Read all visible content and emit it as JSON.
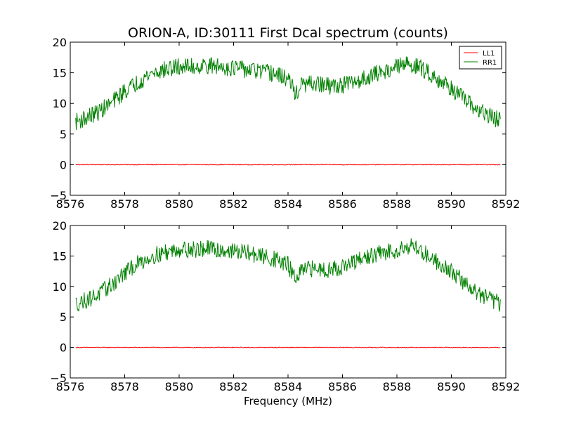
{
  "chart_data": {
    "type": "line",
    "title": "ORION-A, ID:30111 First Dcal spectrum (counts)",
    "xlabel": "Frequency (MHz)",
    "ylabel": "",
    "xlim": [
      8576,
      8592
    ],
    "ylim": [
      -5,
      20
    ],
    "x_ticks": [
      8576,
      8578,
      8580,
      8582,
      8584,
      8586,
      8588,
      8590,
      8592
    ],
    "y_ticks": [
      -5,
      0,
      5,
      10,
      15,
      20
    ],
    "x_tick_labels": [
      "8576",
      "8578",
      "8580",
      "8582",
      "8584",
      "8586",
      "8588",
      "8590",
      "8592"
    ],
    "y_tick_labels": [
      "−5",
      "0",
      "5",
      "10",
      "15",
      "20"
    ],
    "grid": false,
    "legend_position": "top-right",
    "panels": [
      {
        "legend": true,
        "series": [
          {
            "name": "LL1",
            "color": "#ff0000",
            "x": [
              8576.2,
              8577,
              8578,
              8579,
              8580,
              8581,
              8582,
              8583,
              8584,
              8585,
              8586,
              8587,
              8588,
              8589,
              8590,
              8591,
              8591.8
            ],
            "values": [
              0,
              0,
              0,
              0,
              0,
              0,
              0,
              0,
              0,
              0,
              0,
              0,
              0,
              0,
              0,
              0,
              0
            ]
          },
          {
            "name": "RR1",
            "color": "#008000",
            "x": [
              8576.2,
              8576.5,
              8577.0,
              8577.5,
              8578.0,
              8578.5,
              8579.0,
              8579.5,
              8580.0,
              8580.5,
              8581.0,
              8581.5,
              8582.0,
              8582.5,
              8583.0,
              8583.5,
              8584.0,
              8584.3,
              8584.5,
              8585.0,
              8585.5,
              8586.0,
              8586.5,
              8587.0,
              8587.5,
              8588.0,
              8588.5,
              8589.0,
              8589.5,
              8590.0,
              8590.5,
              8591.0,
              8591.5,
              8591.8
            ],
            "values": [
              7.0,
              7.5,
              8.5,
              10.0,
              12.0,
              13.5,
              15.0,
              15.5,
              16.0,
              16.0,
              16.2,
              16.0,
              15.8,
              15.5,
              15.2,
              14.8,
              14.0,
              11.5,
              13.0,
              13.2,
              12.8,
              13.0,
              13.5,
              14.5,
              15.2,
              16.0,
              16.5,
              15.5,
              14.0,
              12.5,
              10.5,
              8.8,
              7.8,
              7.2
            ]
          }
        ]
      },
      {
        "legend": false,
        "series": [
          {
            "name": "LL1",
            "color": "#ff0000",
            "x": [
              8576.2,
              8577,
              8578,
              8579,
              8580,
              8581,
              8582,
              8583,
              8584,
              8585,
              8586,
              8587,
              8588,
              8589,
              8590,
              8591,
              8591.8
            ],
            "values": [
              0,
              0,
              0,
              0,
              0,
              0,
              0,
              0,
              0,
              0,
              0,
              0,
              0,
              0,
              0,
              0,
              0
            ]
          },
          {
            "name": "RR1",
            "color": "#008000",
            "x": [
              8576.2,
              8576.5,
              8577.0,
              8577.5,
              8578.0,
              8578.5,
              8579.0,
              8579.5,
              8580.0,
              8580.5,
              8581.0,
              8581.5,
              8582.0,
              8582.5,
              8583.0,
              8583.5,
              8584.0,
              8584.3,
              8584.5,
              8585.0,
              8585.5,
              8586.0,
              8586.5,
              8587.0,
              8587.5,
              8588.0,
              8588.5,
              8589.0,
              8589.5,
              8590.0,
              8590.5,
              8591.0,
              8591.5,
              8591.8
            ],
            "values": [
              7.2,
              7.6,
              8.6,
              10.2,
              12.2,
              13.8,
              15.0,
              15.6,
              16.2,
              16.0,
              16.2,
              16.0,
              15.8,
              15.5,
              15.0,
              14.5,
              13.5,
              11.0,
              12.5,
              13.0,
              12.8,
              13.2,
              14.0,
              15.0,
              15.5,
              16.0,
              16.8,
              15.5,
              14.0,
              12.5,
              10.5,
              8.8,
              7.8,
              7.2
            ]
          }
        ]
      }
    ]
  }
}
